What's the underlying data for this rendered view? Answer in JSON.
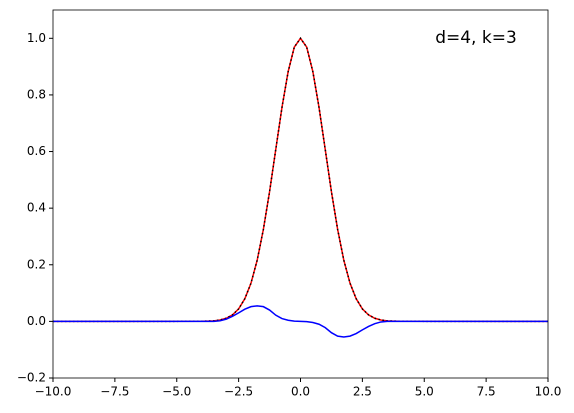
{
  "chart_data": {
    "type": "line",
    "annotation": "d=4, k=3",
    "x": [
      -10,
      -4,
      -3.75,
      -3.5,
      -3.25,
      -3,
      -2.75,
      -2.5,
      -2.25,
      -2,
      -1.75,
      -1.5,
      -1.25,
      -1,
      -0.75,
      -0.5,
      -0.25,
      0,
      0.25,
      0.5,
      0.75,
      1,
      1.25,
      1.5,
      1.75,
      2,
      2.25,
      2.5,
      2.75,
      3,
      3.25,
      3.5,
      3.75,
      4,
      10
    ],
    "series": [
      {
        "color": "#ff0000",
        "dash": "solid",
        "values": [
          0,
          0.0003,
          0.001,
          0.002,
          0.005,
          0.011,
          0.023,
          0.044,
          0.08,
          0.135,
          0.216,
          0.325,
          0.458,
          0.607,
          0.755,
          0.882,
          0.969,
          1,
          0.969,
          0.882,
          0.755,
          0.607,
          0.458,
          0.325,
          0.216,
          0.135,
          0.08,
          0.044,
          0.023,
          0.011,
          0.005,
          0.002,
          0.001,
          0.0003,
          0
        ]
      },
      {
        "color": "#000000",
        "dash": "dotted",
        "values": [
          0,
          0.0003,
          0.001,
          0.002,
          0.005,
          0.011,
          0.023,
          0.044,
          0.08,
          0.135,
          0.216,
          0.325,
          0.458,
          0.607,
          0.755,
          0.882,
          0.969,
          1,
          0.969,
          0.882,
          0.755,
          0.607,
          0.458,
          0.325,
          0.216,
          0.135,
          0.08,
          0.044,
          0.023,
          0.011,
          0.005,
          0.002,
          0.001,
          0.0003,
          0
        ]
      },
      {
        "color": "#0000ff",
        "dash": "solid",
        "values": [
          0,
          0,
          0,
          0,
          0.002,
          0.008,
          0.018,
          0.03,
          0.043,
          0.052,
          0.055,
          0.052,
          0.04,
          0.022,
          0.01,
          0.004,
          0.001,
          0,
          -0.001,
          -0.004,
          -0.01,
          -0.022,
          -0.04,
          -0.052,
          -0.055,
          -0.052,
          -0.043,
          -0.03,
          -0.018,
          -0.008,
          -0.002,
          0,
          0,
          0,
          0
        ]
      }
    ],
    "xlim": [
      -10,
      10
    ],
    "xticks": [
      {
        "value": -10,
        "label": "−10.0"
      },
      {
        "value": -7.5,
        "label": "−7.5"
      },
      {
        "value": -5,
        "label": "−5.0"
      },
      {
        "value": -2.5,
        "label": "−2.5"
      },
      {
        "value": 0,
        "label": "0.0"
      },
      {
        "value": 2.5,
        "label": "2.5"
      },
      {
        "value": 5,
        "label": "5.0"
      },
      {
        "value": 7.5,
        "label": "7.5"
      },
      {
        "value": 10,
        "label": "10.0"
      }
    ],
    "ylim": [
      -0.2,
      1.1
    ],
    "yticks": [
      {
        "value": -0.2,
        "label": "−0.2"
      },
      {
        "value": 0,
        "label": "0.0"
      },
      {
        "value": 0.2,
        "label": "0.2"
      },
      {
        "value": 0.4,
        "label": "0.4"
      },
      {
        "value": 0.6,
        "label": "0.6"
      },
      {
        "value": 0.8,
        "label": "0.8"
      },
      {
        "value": 1.0,
        "label": "1.0"
      }
    ]
  }
}
